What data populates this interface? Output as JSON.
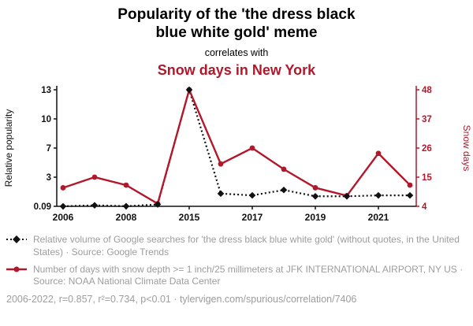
{
  "chart_data": {
    "type": "line",
    "title": "Popularity of the 'the dress black blue white gold' meme",
    "subtitle": "correlates with",
    "title2": "Snow days in New York",
    "grid": false,
    "legend_position": "bottom-left",
    "categories": [
      "2006",
      "2007",
      "2008",
      "2014",
      "2015",
      "2016",
      "2017",
      "2018",
      "2019",
      "2020",
      "2021",
      "2022"
    ],
    "x_ticks": [
      {
        "i": 0,
        "label": "2006"
      },
      {
        "i": 2,
        "label": "2008"
      },
      {
        "i": 4,
        "label": "2015"
      },
      {
        "i": 6,
        "label": "2017"
      },
      {
        "i": 8,
        "label": "2019"
      },
      {
        "i": 10,
        "label": "2021"
      }
    ],
    "left_axis": {
      "label": "Relative popularity",
      "min": 0.09,
      "max": 13,
      "tick_labels": [
        "0.09",
        "3",
        "7",
        "10",
        "13"
      ],
      "color": "#111111"
    },
    "right_axis": {
      "label": "Snow days",
      "min": 4,
      "max": 48,
      "tick_labels": [
        "4",
        "15",
        "26",
        "37",
        "48"
      ],
      "color": "#b2182b"
    },
    "series": [
      {
        "name": "Relative volume of Google searches for 'the dress black blue white gold'",
        "axis": "left",
        "color": "#111111",
        "line_style": "dotted",
        "marker": "diamond",
        "values": [
          0.09,
          0.2,
          0.1,
          0.3,
          13,
          1.5,
          1.3,
          1.9,
          1.2,
          1.2,
          1.3,
          1.3
        ]
      },
      {
        "name": "Days with snow depth >= 1 inch/25 millimeters at JFK International Airport, NY US",
        "axis": "right",
        "color": "#b2182b",
        "line_style": "solid",
        "marker": "circle",
        "values": [
          11,
          15,
          12,
          5,
          48,
          20,
          26,
          18,
          11,
          8,
          24,
          12
        ]
      }
    ]
  },
  "legend": {
    "item1": "Relative volume of Google searches for 'the dress black blue white gold' (without quotes, in the United States) · Source: Google Trends",
    "item2": "Number of days with snow depth >= 1 inch/25 millimeters at JFK INTERNATIONAL AIRPORT, NY US · Source: NOAA National Climate Data Center"
  },
  "footer": {
    "text": "2006-2022, r=0.857, r²=0.734, p<0.01 · tylervigen.com/spurious/correlation/7406"
  },
  "colors": {
    "accent_red": "#b2182b",
    "black": "#111111",
    "text_gray": "#9d9d9d"
  }
}
